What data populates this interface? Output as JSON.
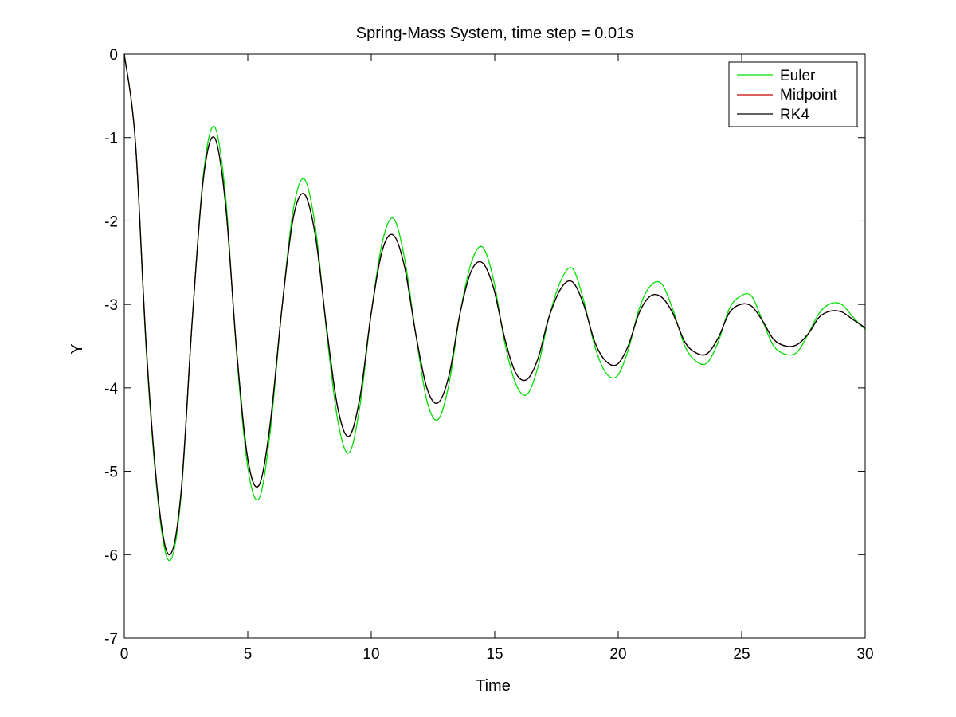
{
  "chart_data": {
    "type": "line",
    "title": "Spring-Mass System, time step = 0.01s",
    "xlabel": "Time",
    "ylabel": "Y",
    "xlim": [
      0,
      30
    ],
    "ylim": [
      -7,
      0
    ],
    "xticks": [
      0,
      5,
      10,
      15,
      20,
      25,
      30
    ],
    "yticks": [
      0,
      -1,
      -2,
      -3,
      -4,
      -5,
      -6,
      -7
    ],
    "grid": false,
    "legend_position": "top-right",
    "series": [
      {
        "name": "Euler",
        "color": "#00dd00",
        "x": [
          0,
          0.45,
          0.9,
          1.4,
          1.85,
          2.3,
          2.75,
          3.2,
          3.65,
          4.1,
          4.55,
          5.0,
          5.45,
          5.9,
          6.4,
          6.85,
          7.3,
          7.75,
          8.2,
          8.65,
          9.1,
          9.55,
          10.0,
          10.45,
          10.9,
          11.35,
          11.8,
          12.25,
          12.7,
          13.15,
          13.6,
          14.05,
          14.5,
          14.95,
          15.4,
          15.85,
          16.3,
          16.75,
          17.2,
          17.7,
          18.15,
          18.6,
          19.05,
          19.5,
          19.95,
          20.4,
          20.85,
          21.3,
          21.75,
          22.2,
          22.7,
          23.15,
          23.6,
          24.05,
          24.5,
          24.95,
          25.4,
          25.85,
          26.3,
          26.8,
          27.25,
          27.7,
          28.15,
          28.6,
          29.05,
          29.5,
          30
        ],
        "y": [
          0,
          -1.05,
          -3.6,
          -5.45,
          -6.07,
          -5.3,
          -3.2,
          -1.45,
          -0.87,
          -1.7,
          -3.6,
          -4.95,
          -5.33,
          -4.55,
          -3.0,
          -1.85,
          -1.5,
          -2.1,
          -3.35,
          -4.4,
          -4.78,
          -4.2,
          -3.1,
          -2.25,
          -1.97,
          -2.45,
          -3.35,
          -4.15,
          -4.38,
          -3.95,
          -3.1,
          -2.5,
          -2.31,
          -2.7,
          -3.45,
          -3.95,
          -4.08,
          -3.75,
          -3.15,
          -2.7,
          -2.57,
          -2.95,
          -3.5,
          -3.82,
          -3.86,
          -3.55,
          -3.05,
          -2.78,
          -2.75,
          -3.05,
          -3.5,
          -3.68,
          -3.7,
          -3.45,
          -3.05,
          -2.9,
          -2.9,
          -3.2,
          -3.5,
          -3.6,
          -3.57,
          -3.35,
          -3.1,
          -2.99,
          -3.0,
          -3.15,
          -3.3
        ]
      },
      {
        "name": "Midpoint",
        "color": "#cc0000",
        "x": [
          0,
          0.45,
          0.9,
          1.4,
          1.85,
          2.3,
          2.75,
          3.2,
          3.65,
          4.1,
          4.55,
          5.0,
          5.45,
          5.9,
          6.4,
          6.85,
          7.3,
          7.75,
          8.2,
          8.65,
          9.1,
          9.55,
          10.0,
          10.45,
          10.9,
          11.35,
          11.8,
          12.25,
          12.7,
          13.15,
          13.6,
          14.05,
          14.5,
          14.95,
          15.4,
          15.85,
          16.3,
          16.75,
          17.2,
          17.7,
          18.15,
          18.6,
          19.05,
          19.5,
          19.95,
          20.4,
          20.85,
          21.3,
          21.75,
          22.2,
          22.7,
          23.15,
          23.6,
          24.05,
          24.5,
          24.95,
          25.4,
          25.85,
          26.3,
          26.8,
          27.25,
          27.7,
          28.15,
          28.6,
          29.05,
          29.5,
          30
        ],
        "y": [
          0,
          -1.05,
          -3.55,
          -5.4,
          -6.0,
          -5.25,
          -3.2,
          -1.5,
          -1.0,
          -1.8,
          -3.55,
          -4.85,
          -5.17,
          -4.45,
          -3.0,
          -1.95,
          -1.68,
          -2.2,
          -3.3,
          -4.25,
          -4.58,
          -4.1,
          -3.1,
          -2.35,
          -2.17,
          -2.55,
          -3.35,
          -4.0,
          -4.18,
          -3.85,
          -3.1,
          -2.6,
          -2.5,
          -2.8,
          -3.4,
          -3.82,
          -3.9,
          -3.65,
          -3.15,
          -2.8,
          -2.73,
          -3.0,
          -3.45,
          -3.68,
          -3.72,
          -3.5,
          -3.1,
          -2.9,
          -2.91,
          -3.1,
          -3.45,
          -3.58,
          -3.59,
          -3.4,
          -3.1,
          -3.0,
          -3.02,
          -3.2,
          -3.42,
          -3.5,
          -3.48,
          -3.35,
          -3.15,
          -3.08,
          -3.09,
          -3.18,
          -3.28
        ]
      },
      {
        "name": "RK4",
        "color": "#000000",
        "x": [
          0,
          0.45,
          0.9,
          1.4,
          1.85,
          2.3,
          2.75,
          3.2,
          3.65,
          4.1,
          4.55,
          5.0,
          5.45,
          5.9,
          6.4,
          6.85,
          7.3,
          7.75,
          8.2,
          8.65,
          9.1,
          9.55,
          10.0,
          10.45,
          10.9,
          11.35,
          11.8,
          12.25,
          12.7,
          13.15,
          13.6,
          14.05,
          14.5,
          14.95,
          15.4,
          15.85,
          16.3,
          16.75,
          17.2,
          17.7,
          18.15,
          18.6,
          19.05,
          19.5,
          19.95,
          20.4,
          20.85,
          21.3,
          21.75,
          22.2,
          22.7,
          23.15,
          23.6,
          24.05,
          24.5,
          24.95,
          25.4,
          25.85,
          26.3,
          26.8,
          27.25,
          27.7,
          28.15,
          28.6,
          29.05,
          29.5,
          30
        ],
        "y": [
          0,
          -1.05,
          -3.55,
          -5.4,
          -6.0,
          -5.25,
          -3.2,
          -1.5,
          -1.0,
          -1.8,
          -3.55,
          -4.85,
          -5.17,
          -4.45,
          -3.0,
          -1.95,
          -1.68,
          -2.2,
          -3.3,
          -4.25,
          -4.58,
          -4.1,
          -3.1,
          -2.35,
          -2.17,
          -2.55,
          -3.35,
          -4.0,
          -4.18,
          -3.85,
          -3.1,
          -2.6,
          -2.5,
          -2.8,
          -3.4,
          -3.82,
          -3.9,
          -3.65,
          -3.15,
          -2.8,
          -2.73,
          -3.0,
          -3.45,
          -3.68,
          -3.72,
          -3.5,
          -3.1,
          -2.9,
          -2.91,
          -3.1,
          -3.45,
          -3.58,
          -3.59,
          -3.4,
          -3.1,
          -3.0,
          -3.02,
          -3.2,
          -3.42,
          -3.5,
          -3.48,
          -3.35,
          -3.15,
          -3.08,
          -3.09,
          -3.18,
          -3.28
        ]
      }
    ]
  }
}
